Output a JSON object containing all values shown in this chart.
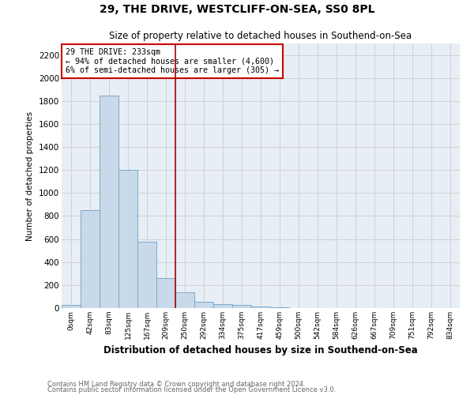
{
  "title": "29, THE DRIVE, WESTCLIFF-ON-SEA, SS0 8PL",
  "subtitle": "Size of property relative to detached houses in Southend-on-Sea",
  "xlabel": "Distribution of detached houses by size in Southend-on-Sea",
  "ylabel": "Number of detached properties",
  "footnote1": "Contains HM Land Registry data © Crown copyright and database right 2024.",
  "footnote2": "Contains public sector information licensed under the Open Government Licence v3.0.",
  "bar_labels": [
    "0sqm",
    "42sqm",
    "83sqm",
    "125sqm",
    "167sqm",
    "209sqm",
    "250sqm",
    "292sqm",
    "334sqm",
    "375sqm",
    "417sqm",
    "459sqm",
    "500sqm",
    "542sqm",
    "584sqm",
    "626sqm",
    "667sqm",
    "709sqm",
    "751sqm",
    "792sqm",
    "834sqm"
  ],
  "bar_heights": [
    30,
    850,
    1850,
    1200,
    580,
    260,
    140,
    55,
    35,
    25,
    15,
    5,
    0,
    0,
    0,
    0,
    0,
    0,
    0,
    0,
    0
  ],
  "bar_color": "#c8d9ea",
  "bar_edge_color": "#7aaac8",
  "grid_color": "#cccccc",
  "vline_x": 6.0,
  "vline_color": "#aa0000",
  "annotation_text": "29 THE DRIVE: 233sqm\n← 94% of detached houses are smaller (4,600)\n6% of semi-detached houses are larger (305) →",
  "annotation_box_color": "#ffffff",
  "annotation_box_edge_color": "#cc0000",
  "ylim": [
    0,
    2300
  ],
  "yticks": [
    0,
    200,
    400,
    600,
    800,
    1000,
    1200,
    1400,
    1600,
    1800,
    2000,
    2200
  ],
  "background_color": "#e8eef5",
  "fig_background": "#ffffff"
}
